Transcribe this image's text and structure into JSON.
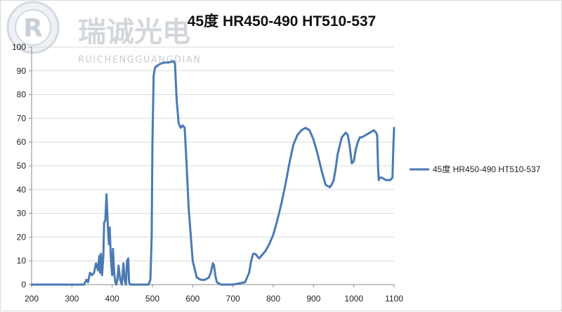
{
  "watermark": {
    "brand_cn": "瑞诚光电",
    "brand_en": "RUICHENGGUANGDIAN"
  },
  "chart_data": {
    "type": "line",
    "title": "45度 HR450-490 HT510-537",
    "xlabel": "",
    "ylabel": "",
    "xlim": [
      200,
      1100
    ],
    "ylim": [
      0,
      100
    ],
    "x_ticks": [
      "200",
      "300",
      "400",
      "500",
      "600",
      "700",
      "800",
      "900",
      "1000",
      "1100"
    ],
    "y_ticks": [
      "0",
      "10",
      "20",
      "30",
      "40",
      "50",
      "60",
      "70",
      "80",
      "90",
      "100"
    ],
    "grid": "horizontal",
    "legend": "right",
    "color": "#4a7ab5",
    "series": [
      {
        "name": "45度 HR450-490 HT510-537",
        "x": [
          200,
          300,
          330,
          336,
          340,
          345,
          350,
          355,
          360,
          365,
          368,
          370,
          372,
          375,
          378,
          380,
          383,
          386,
          388,
          390,
          392,
          394,
          396,
          398,
          400,
          402,
          405,
          408,
          410,
          413,
          416,
          420,
          424,
          428,
          431,
          434,
          437,
          440,
          442,
          445,
          450,
          460,
          480,
          490,
          495,
          498,
          500,
          503,
          506,
          509,
          512,
          515,
          520,
          530,
          540,
          550,
          553,
          556,
          560,
          565,
          570,
          575,
          580,
          585,
          590,
          600,
          610,
          620,
          630,
          640,
          645,
          650,
          653,
          656,
          660,
          670,
          700,
          730,
          740,
          745,
          750,
          755,
          760,
          765,
          770,
          780,
          790,
          800,
          810,
          820,
          830,
          840,
          850,
          860,
          870,
          880,
          890,
          900,
          910,
          920,
          930,
          940,
          945,
          950,
          955,
          960,
          970,
          980,
          985,
          990,
          995,
          1000,
          1005,
          1010,
          1015,
          1020,
          1030,
          1040,
          1050,
          1055,
          1058,
          1060,
          1062,
          1064,
          1066,
          1070,
          1080,
          1090,
          1096,
          1098,
          1100
        ],
        "y": [
          0,
          0,
          0,
          2,
          1,
          5,
          4,
          5,
          9,
          6,
          12,
          5,
          13,
          4,
          12,
          26,
          27,
          38,
          30,
          22,
          17,
          24,
          14,
          8,
          4,
          15,
          5,
          1,
          0,
          2,
          8,
          2,
          0,
          9,
          2,
          0,
          10,
          11,
          1,
          0,
          0,
          0,
          0,
          0,
          2,
          20,
          60,
          88,
          91,
          92,
          92,
          92.5,
          93,
          93.5,
          93.5,
          94,
          94,
          93,
          78,
          68,
          66,
          67,
          66,
          50,
          32,
          10,
          3,
          2,
          2,
          3,
          5,
          9,
          8,
          4,
          1,
          0,
          0,
          1,
          5,
          10,
          13,
          13,
          12,
          11,
          12,
          14,
          17,
          21,
          27,
          34,
          42,
          51,
          59,
          63,
          65,
          66,
          65,
          61,
          55,
          48,
          42,
          41,
          42,
          44,
          49,
          55,
          62,
          64,
          63,
          58,
          51,
          52,
          57,
          60,
          62,
          62,
          63,
          64,
          65,
          64,
          63,
          50,
          44,
          45,
          45,
          45,
          44,
          44,
          45,
          58,
          66
        ]
      }
    ]
  }
}
